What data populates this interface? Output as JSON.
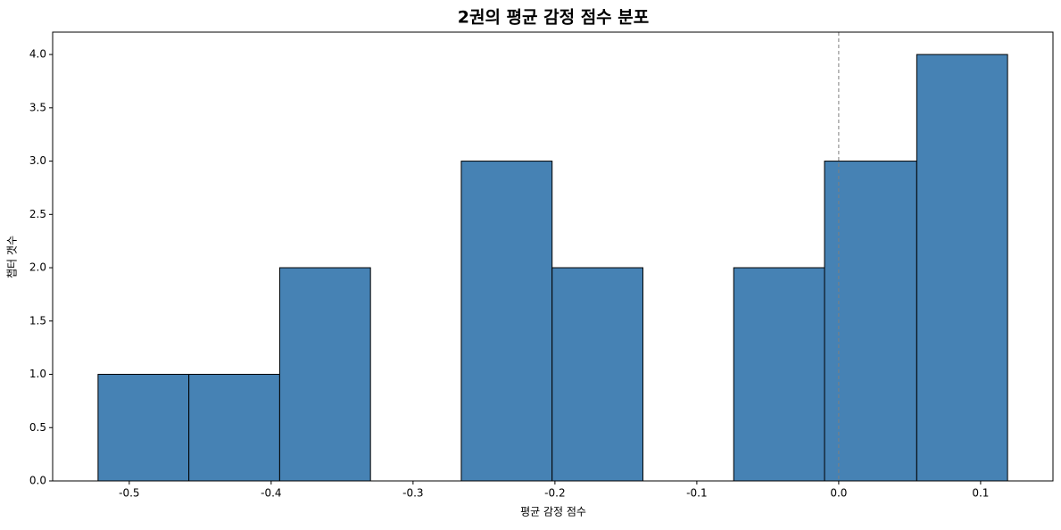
{
  "chart_data": {
    "type": "histogram",
    "title": "2권의 평균 감정 점수 분포",
    "xlabel": "평균 감정 점수",
    "ylabel": "챕터 갯수",
    "bins": [
      -0.522,
      -0.458,
      -0.394,
      -0.33,
      -0.266,
      -0.202,
      -0.138,
      -0.074,
      -0.01,
      0.055,
      0.119
    ],
    "values": [
      1,
      1,
      2,
      0,
      3,
      2,
      0,
      2,
      3,
      4
    ],
    "color": "#4682b4",
    "edgecolor": "#000000",
    "xlim": [
      -0.554,
      0.151
    ],
    "xticks": [
      -0.5,
      -0.4,
      -0.3,
      -0.2,
      -0.1,
      {
        "value": 0,
        "label": "0.0"
      },
      0.1
    ],
    "ylim": [
      0,
      4.21
    ],
    "yticks": [
      {
        "value": 0,
        "label": "0.0"
      },
      0.5,
      {
        "value": 1,
        "label": "1.0"
      },
      1.5,
      {
        "value": 2,
        "label": "2.0"
      },
      2.5,
      {
        "value": 3,
        "label": "3.0"
      },
      3.5,
      {
        "value": 4,
        "label": "4.0"
      }
    ],
    "reference_line": 0,
    "reference_line_color": "#808080",
    "grid": false
  }
}
